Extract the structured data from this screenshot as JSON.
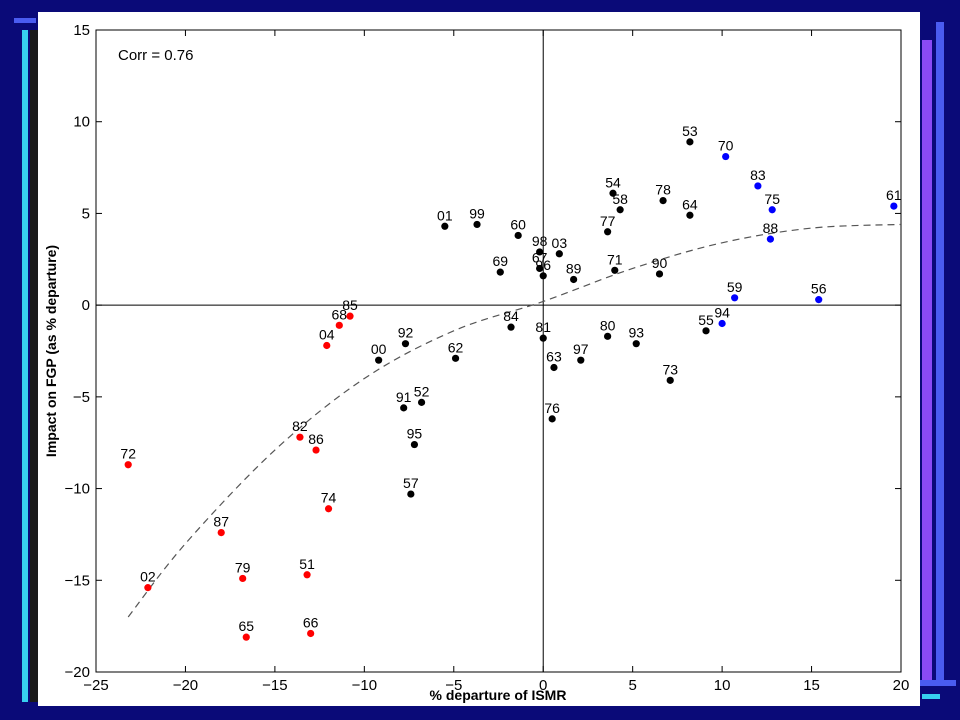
{
  "slide": {
    "background": "#0a0a78",
    "accent_colors": [
      "#4a5cf0",
      "#8a4af5",
      "#37d0f0",
      "#1a1a1a"
    ]
  },
  "chart_data": {
    "type": "scatter",
    "title": "",
    "xlabel": "% departure of ISMR",
    "ylabel": "Impact on FGP (as % departure)",
    "xlim": [
      -25,
      20
    ],
    "ylim": [
      -20,
      15
    ],
    "xticks": [
      -25,
      -20,
      -15,
      -10,
      -5,
      0,
      5,
      10,
      15,
      20
    ],
    "yticks": [
      -20,
      -15,
      -10,
      -5,
      0,
      5,
      10,
      15
    ],
    "grid": false,
    "zero_lines": true,
    "annotation": "Corr = 0.76",
    "colors": {
      "black": "#000000",
      "red": "#ff0000",
      "blue": "#0000ff"
    },
    "points": [
      {
        "label": "53",
        "x": 8.2,
        "y": 8.9,
        "color": "black"
      },
      {
        "label": "70",
        "x": 10.2,
        "y": 8.1,
        "color": "blue"
      },
      {
        "label": "83",
        "x": 12.0,
        "y": 6.5,
        "color": "blue"
      },
      {
        "label": "75",
        "x": 12.8,
        "y": 5.2,
        "color": "blue"
      },
      {
        "label": "61",
        "x": 19.6,
        "y": 5.4,
        "color": "blue"
      },
      {
        "label": "88",
        "x": 12.7,
        "y": 3.6,
        "color": "blue"
      },
      {
        "label": "59",
        "x": 10.7,
        "y": 0.4,
        "color": "blue"
      },
      {
        "label": "56",
        "x": 15.4,
        "y": 0.3,
        "color": "blue"
      },
      {
        "label": "94",
        "x": 10.0,
        "y": -1.0,
        "color": "blue"
      },
      {
        "label": "55",
        "x": 9.1,
        "y": -1.4,
        "color": "black"
      },
      {
        "label": "54",
        "x": 3.9,
        "y": 6.1,
        "color": "black"
      },
      {
        "label": "58",
        "x": 4.3,
        "y": 5.2,
        "color": "black"
      },
      {
        "label": "78",
        "x": 6.7,
        "y": 5.7,
        "color": "black"
      },
      {
        "label": "64",
        "x": 8.2,
        "y": 4.9,
        "color": "black"
      },
      {
        "label": "77",
        "x": 3.6,
        "y": 4.0,
        "color": "black"
      },
      {
        "label": "71",
        "x": 4.0,
        "y": 1.9,
        "color": "black"
      },
      {
        "label": "90",
        "x": 6.5,
        "y": 1.7,
        "color": "black"
      },
      {
        "label": "03",
        "x": 0.9,
        "y": 2.8,
        "color": "black"
      },
      {
        "label": "98",
        "x": -0.2,
        "y": 2.9,
        "color": "black"
      },
      {
        "label": "67",
        "x": -0.2,
        "y": 2.0,
        "color": "black"
      },
      {
        "label": "89",
        "x": 1.7,
        "y": 1.4,
        "color": "black"
      },
      {
        "label": "96",
        "x": 0.0,
        "y": 1.6,
        "color": "black"
      },
      {
        "label": "01",
        "x": -5.5,
        "y": 4.3,
        "color": "black"
      },
      {
        "label": "99",
        "x": -3.7,
        "y": 4.4,
        "color": "black"
      },
      {
        "label": "60",
        "x": -1.4,
        "y": 3.8,
        "color": "black"
      },
      {
        "label": "69",
        "x": -2.4,
        "y": 1.8,
        "color": "black"
      },
      {
        "label": "85",
        "x": -10.8,
        "y": -0.6,
        "color": "red"
      },
      {
        "label": "68",
        "x": -11.4,
        "y": -1.1,
        "color": "red"
      },
      {
        "label": "04",
        "x": -12.1,
        "y": -2.2,
        "color": "red"
      },
      {
        "label": "84",
        "x": -1.8,
        "y": -1.2,
        "color": "black"
      },
      {
        "label": "81",
        "x": 0.0,
        "y": -1.8,
        "color": "black"
      },
      {
        "label": "80",
        "x": 3.6,
        "y": -1.7,
        "color": "black"
      },
      {
        "label": "93",
        "x": 5.2,
        "y": -2.1,
        "color": "black"
      },
      {
        "label": "63",
        "x": 0.6,
        "y": -3.4,
        "color": "black"
      },
      {
        "label": "97",
        "x": 2.1,
        "y": -3.0,
        "color": "black"
      },
      {
        "label": "73",
        "x": 7.1,
        "y": -4.1,
        "color": "black"
      },
      {
        "label": "76",
        "x": 0.5,
        "y": -6.2,
        "color": "black"
      },
      {
        "label": "92",
        "x": -7.7,
        "y": -2.1,
        "color": "black"
      },
      {
        "label": "00",
        "x": -9.2,
        "y": -3.0,
        "color": "black"
      },
      {
        "label": "62",
        "x": -4.9,
        "y": -2.9,
        "color": "black"
      },
      {
        "label": "91",
        "x": -7.8,
        "y": -5.6,
        "color": "black"
      },
      {
        "label": "52",
        "x": -6.8,
        "y": -5.3,
        "color": "black"
      },
      {
        "label": "95",
        "x": -7.2,
        "y": -7.6,
        "color": "black"
      },
      {
        "label": "57",
        "x": -7.4,
        "y": -10.3,
        "color": "black"
      },
      {
        "label": "82",
        "x": -13.6,
        "y": -7.2,
        "color": "red"
      },
      {
        "label": "86",
        "x": -12.7,
        "y": -7.9,
        "color": "red"
      },
      {
        "label": "72",
        "x": -23.2,
        "y": -8.7,
        "color": "red"
      },
      {
        "label": "74",
        "x": -12.0,
        "y": -11.1,
        "color": "red"
      },
      {
        "label": "87",
        "x": -18.0,
        "y": -12.4,
        "color": "red"
      },
      {
        "label": "02",
        "x": -22.1,
        "y": -15.4,
        "color": "red"
      },
      {
        "label": "79",
        "x": -16.8,
        "y": -14.9,
        "color": "red"
      },
      {
        "label": "51",
        "x": -13.2,
        "y": -14.7,
        "color": "red"
      },
      {
        "label": "65",
        "x": -16.6,
        "y": -18.1,
        "color": "red"
      },
      {
        "label": "66",
        "x": -13.0,
        "y": -17.9,
        "color": "red"
      }
    ],
    "fit_curve": {
      "style": "dashed",
      "x": [
        -23.2,
        -20,
        -15,
        -10,
        -5,
        0,
        5,
        10,
        15,
        20
      ],
      "y": [
        -17.0,
        -13.0,
        -7.9,
        -4.0,
        -1.4,
        0.2,
        2.0,
        3.4,
        4.2,
        4.4
      ]
    }
  }
}
